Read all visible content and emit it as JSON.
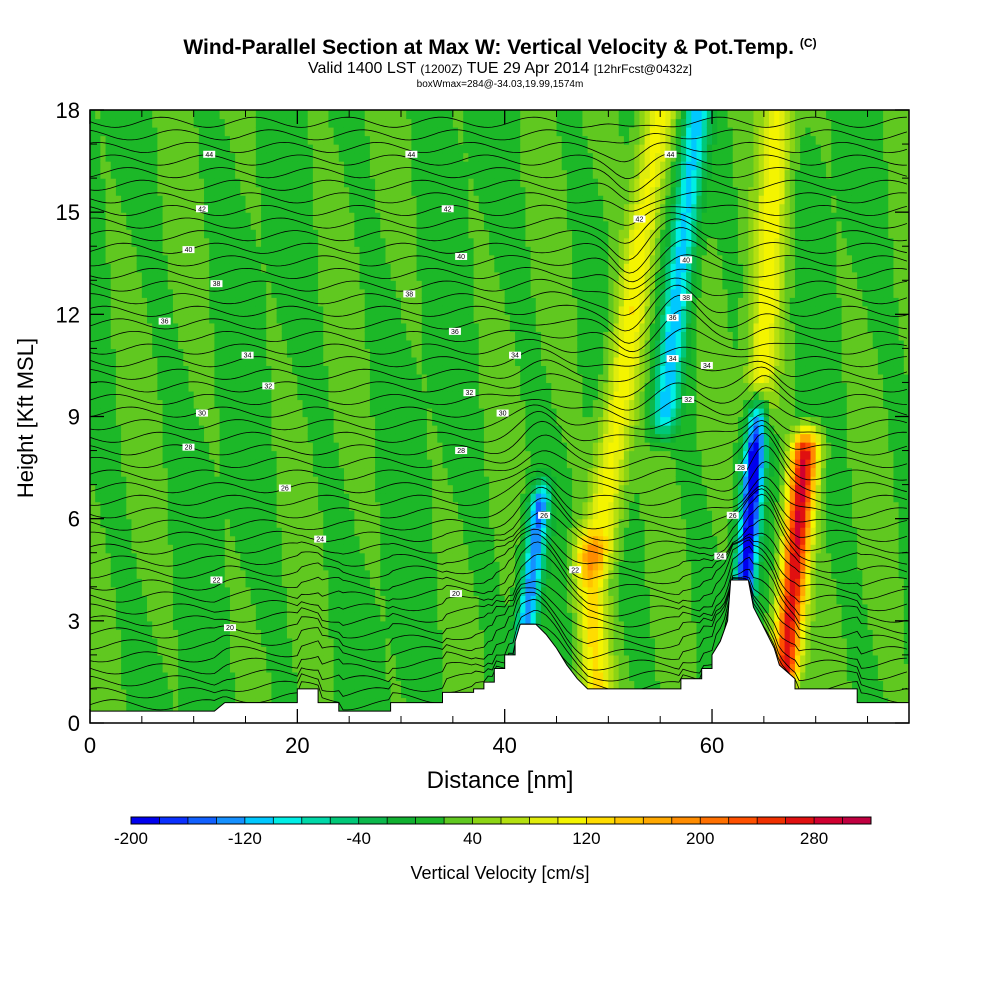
{
  "title": {
    "main": "Wind-Parallel Section at Max W: Vertical Velocity & Pot.Temp.",
    "copyright": "(C)",
    "valid_prefix": "Valid 1400 LST",
    "valid_utc": "(1200Z)",
    "valid_date": "TUE 29 Apr 2014",
    "forecast": "[12hrFcst@0432z]",
    "box_info": "boxWmax=284@-34.03,19.99,1574m"
  },
  "chart_data": {
    "type": "heatmap",
    "title": "Wind-Parallel Section at Max W: Vertical Velocity & Pot.Temp.",
    "xlabel": "Distance [nm]",
    "ylabel": "Height [Kft MSL]",
    "xlim": [
      0,
      79
    ],
    "ylim": [
      0,
      18
    ],
    "x_ticks": [
      0,
      20,
      40,
      60
    ],
    "x_tick_labels": [
      "0",
      "20",
      "40",
      "60"
    ],
    "y_ticks": [
      0,
      3,
      6,
      9,
      12,
      15,
      18
    ],
    "y_tick_labels": [
      "0",
      "3",
      "6",
      "9",
      "12",
      "15",
      "18"
    ],
    "colorbar": {
      "label": "Vertical Velocity [cm/s]",
      "min": -200,
      "max": 320,
      "step": 20,
      "tick_values": [
        -200,
        -120,
        -40,
        40,
        120,
        200,
        280
      ],
      "tick_labels": [
        "-200",
        "-120",
        "-40",
        "40",
        "120",
        "200",
        "280"
      ],
      "colors": [
        "#0000ee",
        "#0a30ff",
        "#1160ff",
        "#1590ff",
        "#00c8ff",
        "#00eee6",
        "#00d8a8",
        "#00c878",
        "#0cb84c",
        "#10b030",
        "#1cb828",
        "#60c820",
        "#8cd414",
        "#b4e010",
        "#e0ec0c",
        "#f4f400",
        "#ffdc00",
        "#ffc400",
        "#ffa800",
        "#ff8c00",
        "#ff7000",
        "#ff5000",
        "#f03000",
        "#e01010",
        "#d00030",
        "#c00040"
      ]
    },
    "terrain": [
      [
        0,
        0.35
      ],
      [
        12,
        0.35
      ],
      [
        13,
        0.6
      ],
      [
        20,
        0.6
      ],
      [
        20,
        1.0
      ],
      [
        22,
        1.0
      ],
      [
        22,
        0.6
      ],
      [
        24,
        0.6
      ],
      [
        24,
        0.35
      ],
      [
        29,
        0.35
      ],
      [
        29,
        0.6
      ],
      [
        34,
        0.6
      ],
      [
        34,
        0.9
      ],
      [
        37,
        0.9
      ],
      [
        37,
        1.0
      ],
      [
        38,
        1.0
      ],
      [
        38,
        1.2
      ],
      [
        39,
        1.2
      ],
      [
        39,
        1.6
      ],
      [
        40,
        1.6
      ],
      [
        40,
        2.0
      ],
      [
        41,
        2.0
      ],
      [
        41,
        2.4
      ],
      [
        41.5,
        2.9
      ],
      [
        43,
        2.9
      ],
      [
        44,
        2.6
      ],
      [
        45,
        2.2
      ],
      [
        46,
        1.7
      ],
      [
        47,
        1.3
      ],
      [
        48,
        1.0
      ],
      [
        57,
        1.0
      ],
      [
        57,
        1.3
      ],
      [
        59,
        1.3
      ],
      [
        59,
        1.6
      ],
      [
        60,
        1.6
      ],
      [
        60,
        2.0
      ],
      [
        60.8,
        2.4
      ],
      [
        61.5,
        3.0
      ],
      [
        61.8,
        4.2
      ],
      [
        63.5,
        4.2
      ],
      [
        64,
        3.4
      ],
      [
        65,
        2.8
      ],
      [
        66,
        2.2
      ],
      [
        66.5,
        1.7
      ],
      [
        68,
        1.3
      ],
      [
        68,
        1.0
      ],
      [
        74,
        1.0
      ],
      [
        74,
        0.6
      ],
      [
        79,
        0.6
      ],
      [
        79,
        0
      ]
    ],
    "vertical_velocity_features": [
      {
        "x": 42.5,
        "z0": 1.5,
        "z1": 6.5,
        "slope": 0.35,
        "width": 1.0,
        "w": -140
      },
      {
        "x": 48.5,
        "z0": 0.5,
        "z1": 5.0,
        "slope": -0.2,
        "width": 1.5,
        "w": 130
      },
      {
        "x": 52,
        "z0": 5,
        "z1": 18,
        "slope": 0.45,
        "width": 1.6,
        "w": 120
      },
      {
        "x": 57,
        "z0": 9,
        "z1": 18,
        "slope": 0.35,
        "width": 1.3,
        "w": -110
      },
      {
        "x": 63.7,
        "z0": 3.5,
        "z1": 9,
        "slope": 0.25,
        "width": 1.0,
        "w": -200
      },
      {
        "x": 68,
        "z0": 1.5,
        "z1": 8,
        "slope": 0.3,
        "width": 1.3,
        "w": 284
      },
      {
        "x": 65.5,
        "z0": 9,
        "z1": 18,
        "slope": 0.2,
        "width": 1.5,
        "w": 110
      }
    ],
    "pot_temp_contours": {
      "unit": "degC",
      "labels": [
        {
          "x": 11.5,
          "z": 16.7,
          "value": "44"
        },
        {
          "x": 31,
          "z": 16.7,
          "value": "44"
        },
        {
          "x": 56,
          "z": 16.7,
          "value": "44"
        },
        {
          "x": 10.8,
          "z": 15.1,
          "value": "42"
        },
        {
          "x": 34.5,
          "z": 15.1,
          "value": "42"
        },
        {
          "x": 53,
          "z": 14.8,
          "value": "42"
        },
        {
          "x": 9.5,
          "z": 13.9,
          "value": "40"
        },
        {
          "x": 35.8,
          "z": 13.7,
          "value": "40"
        },
        {
          "x": 57.5,
          "z": 13.6,
          "value": "40"
        },
        {
          "x": 12.2,
          "z": 12.9,
          "value": "38"
        },
        {
          "x": 30.8,
          "z": 12.6,
          "value": "38"
        },
        {
          "x": 57.5,
          "z": 12.5,
          "value": "38"
        },
        {
          "x": 7.2,
          "z": 11.8,
          "value": "36"
        },
        {
          "x": 35.2,
          "z": 11.5,
          "value": "36"
        },
        {
          "x": 56.2,
          "z": 11.9,
          "value": "36"
        },
        {
          "x": 15.2,
          "z": 10.8,
          "value": "34"
        },
        {
          "x": 41,
          "z": 10.8,
          "value": "34"
        },
        {
          "x": 56.2,
          "z": 10.7,
          "value": "34"
        },
        {
          "x": 59.5,
          "z": 10.5,
          "value": "34"
        },
        {
          "x": 17.2,
          "z": 9.9,
          "value": "32"
        },
        {
          "x": 36.6,
          "z": 9.7,
          "value": "32"
        },
        {
          "x": 57.7,
          "z": 9.5,
          "value": "32"
        },
        {
          "x": 10.8,
          "z": 9.1,
          "value": "30"
        },
        {
          "x": 39.8,
          "z": 9.1,
          "value": "30"
        },
        {
          "x": 9.5,
          "z": 8.1,
          "value": "28"
        },
        {
          "x": 35.8,
          "z": 8.0,
          "value": "28"
        },
        {
          "x": 62.8,
          "z": 7.5,
          "value": "28"
        },
        {
          "x": 18.8,
          "z": 6.9,
          "value": "26"
        },
        {
          "x": 43.8,
          "z": 6.1,
          "value": "26"
        },
        {
          "x": 62,
          "z": 6.1,
          "value": "26"
        },
        {
          "x": 22.2,
          "z": 5.4,
          "value": "24"
        },
        {
          "x": 60.8,
          "z": 4.9,
          "value": "24"
        },
        {
          "x": 12.2,
          "z": 4.2,
          "value": "22"
        },
        {
          "x": 46.8,
          "z": 4.5,
          "value": "22"
        },
        {
          "x": 35.3,
          "z": 3.8,
          "value": "20"
        },
        {
          "x": 13.5,
          "z": 2.8,
          "value": "20"
        }
      ]
    }
  }
}
